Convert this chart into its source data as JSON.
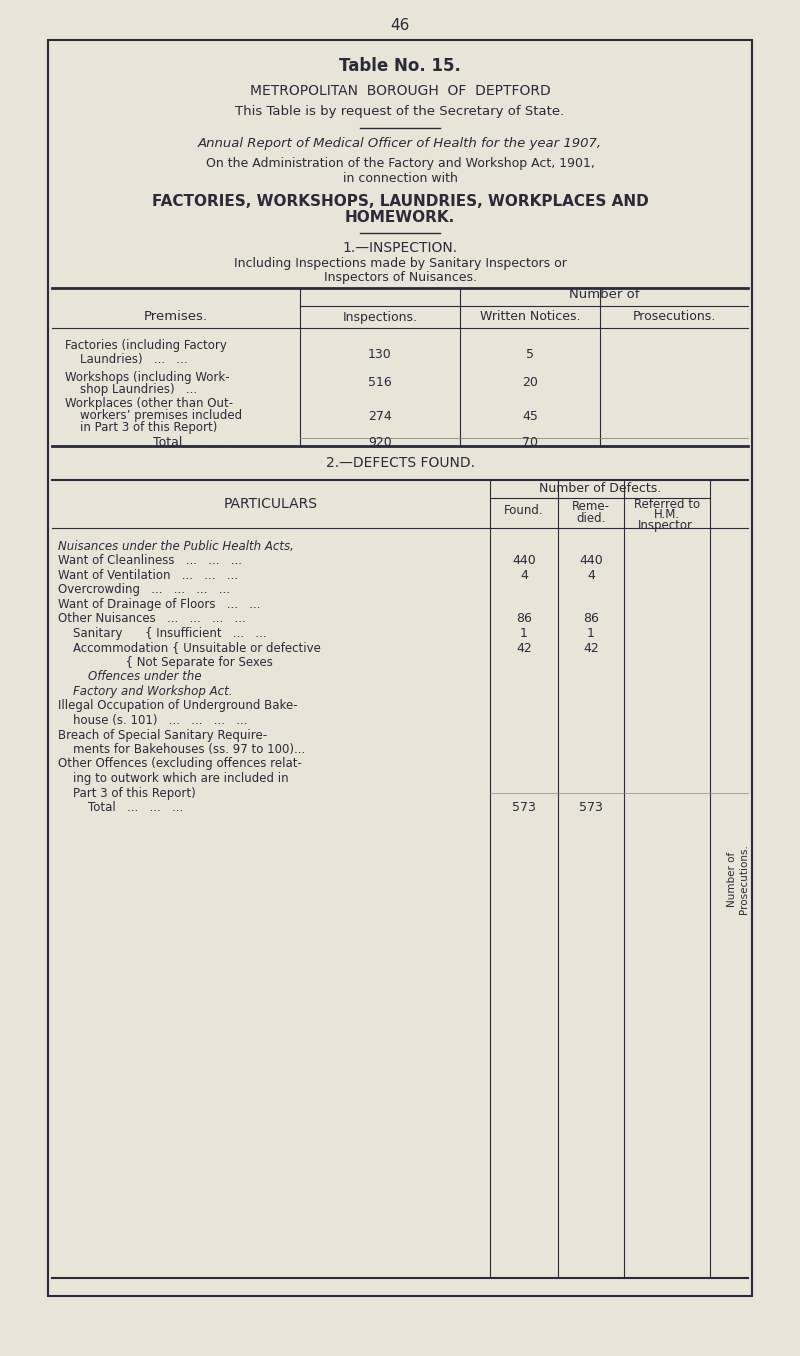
{
  "page_number": "46",
  "bg_color": "#e8e4d8",
  "text_color": "#2a2a3a",
  "title_bold": "Table No. 15.",
  "subtitle1": "METROPOLITAN  BOROUGH  OF  DEPTFORD",
  "subtitle2": "This Table is by request of the Secretary of State.",
  "italic_line": "Annual Report of Medical Officer of Health for the year 1907,",
  "admin_line1": "On the Administration of the Factory and Workshop Act, 1901,",
  "admin_line2": "in connection with",
  "bold_heading": "FACTORIES, WORKSHOPS, LAUNDRIES, WORKPLACES AND\nHOMEWORK.",
  "section1_title": "1.—INSPECTION.",
  "section1_sub": "Including Inspections made by Sanitary Inspectors or\nInspectors of Nuisances.",
  "table1_col_header": "Number of",
  "table1_row_header": "Premises.",
  "table1_subcols": [
    "Inspections.",
    "Written Notices.",
    "Prosecutions."
  ],
  "table1_rows": [
    {
      "label": "Factories (including Factory\n    Laundries)   ...   ...",
      "inspections": "130",
      "notices": "5",
      "prosecutions": ""
    },
    {
      "label": "Workshops (including Work-\n    shop Laundries)   ...",
      "inspections": "516",
      "notices": "20",
      "prosecutions": ""
    },
    {
      "label": "Workplaces (other than Out-\n    workers’ premises included\n    in Part 3 of this Report)",
      "inspections": "274",
      "notices": "45",
      "prosecutions": ""
    },
    {
      "label": "    Total   ...   ...",
      "inspections": "920",
      "notices": "70",
      "prosecutions": ""
    }
  ],
  "section2_title": "2.—DEFECTS FOUND.",
  "table2_header1": "Number of Defects.",
  "table2_header2": "Number of\nProsecutions.",
  "table2_subcols": [
    "Found.",
    "Reme-\ndied.",
    "Referred to\nH.M.\nInspector."
  ],
  "table2_rows": [
    {
      "label": "Nuisances under the Public Health Acts,",
      "italic": true,
      "found": "",
      "remedied": "",
      "referred": "",
      "prosecutions": ""
    },
    {
      "label": "Want of Cleanliness   ...   ...   ...",
      "italic": false,
      "found": "440",
      "remedied": "440",
      "referred": "",
      "prosecutions": ""
    },
    {
      "label": "Want of Ventilation   ...   ...   ...",
      "italic": false,
      "found": "4",
      "remedied": "4",
      "referred": "",
      "prosecutions": ""
    },
    {
      "label": "Overcrowding   ...   ...   ...   ...",
      "italic": false,
      "found": "",
      "remedied": "",
      "referred": "",
      "prosecutions": ""
    },
    {
      "label": "Want of Drainage of Floors   ...   ...",
      "italic": false,
      "found": "",
      "remedied": "",
      "referred": "",
      "prosecutions": ""
    },
    {
      "label": "Other Nuisances   ...   ...   ...   ...",
      "italic": false,
      "found": "86",
      "remedied": "86",
      "referred": "",
      "prosecutions": ""
    },
    {
      "label": "    Sanitary      { Insufficient   ...   ...",
      "italic": false,
      "found": "1",
      "remedied": "1",
      "referred": "",
      "prosecutions": ""
    },
    {
      "label": "    Accommodation { Unsuitable or defective",
      "italic": false,
      "found": "42",
      "remedied": "42",
      "referred": "",
      "prosecutions": ""
    },
    {
      "label": "                  { Not Separate for Sexes",
      "italic": false,
      "found": "",
      "remedied": "",
      "referred": "",
      "prosecutions": ""
    },
    {
      "label": "        Offences under the",
      "italic": true,
      "found": "",
      "remedied": "",
      "referred": "",
      "prosecutions": ""
    },
    {
      "label": "    Factory and Workshop Act.",
      "italic": true,
      "found": "",
      "remedied": "",
      "referred": "",
      "prosecutions": ""
    },
    {
      "label": "Illegal Occupation of Underground Bake-\n    house (s. 101)   ...   ...   ...   ...",
      "italic": false,
      "found": "",
      "remedied": "",
      "referred": "",
      "prosecutions": ""
    },
    {
      "label": "Breach of Special Sanitary Require-\n    ments for Bakehouses (ss. 97 to 100)...",
      "italic": false,
      "found": "",
      "remedied": "",
      "referred": "",
      "prosecutions": ""
    },
    {
      "label": "Other Offences (excluding offences relat-\n    ing to outwork which are included in\n    Part 3 of this Report)",
      "italic": false,
      "found": "",
      "remedied": "",
      "referred": "",
      "prosecutions": ""
    },
    {
      "label": "        Total   ...   ...   ...",
      "italic": false,
      "found": "573",
      "remedied": "573",
      "referred": "",
      "prosecutions": ""
    }
  ]
}
